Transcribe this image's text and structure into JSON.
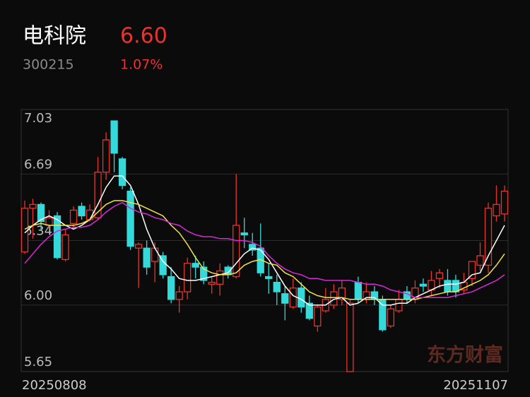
{
  "header": {
    "name": "电科院",
    "price": "6.60",
    "code": "300215",
    "change": "1.07%"
  },
  "watermark": "东方财富",
  "chart_data": {
    "type": "candlestick",
    "categories": [
      "20250808",
      null,
      null,
      null,
      null,
      null,
      null,
      null,
      null,
      null,
      null,
      null,
      null,
      null,
      null,
      null,
      null,
      null,
      null,
      null,
      null,
      null,
      null,
      null,
      null,
      null,
      null,
      null,
      null,
      null,
      null,
      null,
      null,
      null,
      null,
      null,
      null,
      null,
      null,
      null,
      null,
      null,
      null,
      null,
      null,
      null,
      null,
      null,
      null,
      null,
      null,
      null,
      null,
      null,
      null,
      null,
      null,
      null,
      null,
      "20251107"
    ],
    "open": [
      6.28,
      6.51,
      6.53,
      6.42,
      6.47,
      6.24,
      6.43,
      6.52,
      6.45,
      6.46,
      6.7,
      6.97,
      6.77,
      6.6,
      6.3,
      6.3,
      6.23,
      6.26,
      6.15,
      6.03,
      6.07,
      6.22,
      6.2,
      6.11,
      6.11,
      6.2,
      6.15,
      6.38,
      6.32,
      6.3,
      6.15,
      6.12,
      6.06,
      5.99,
      6.09,
      6.01,
      5.89,
      5.97,
      6.0,
      6.03,
      5.65,
      6.12,
      6.03,
      6.07,
      6.03,
      5.89,
      5.97,
      6.07,
      6.03,
      6.11,
      6.08,
      6.14,
      6.13,
      6.13,
      6.08,
      6.14,
      6.21,
      6.21,
      6.47,
      6.48
    ],
    "high": [
      6.55,
      6.56,
      6.54,
      6.5,
      6.49,
      6.4,
      6.52,
      6.54,
      6.53,
      6.78,
      6.91,
      6.97,
      6.78,
      6.62,
      6.33,
      6.34,
      6.33,
      6.28,
      6.2,
      6.1,
      6.25,
      6.26,
      6.23,
      6.15,
      6.22,
      6.21,
      6.69,
      6.46,
      6.38,
      6.43,
      6.22,
      6.16,
      6.1,
      6.14,
      6.12,
      6.05,
      6.0,
      6.09,
      6.11,
      6.13,
      6.03,
      6.15,
      6.12,
      6.1,
      6.05,
      6.0,
      6.08,
      6.1,
      6.13,
      6.14,
      6.18,
      6.19,
      6.19,
      6.16,
      6.17,
      6.23,
      6.33,
      6.54,
      6.63,
      6.63
    ],
    "low": [
      6.27,
      6.35,
      6.4,
      6.4,
      6.24,
      6.23,
      6.4,
      6.45,
      6.44,
      6.45,
      6.66,
      6.7,
      6.61,
      6.29,
      6.09,
      6.16,
      6.12,
      6.14,
      6.01,
      5.96,
      6.03,
      6.14,
      6.11,
      6.06,
      6.05,
      6.14,
      6.14,
      6.3,
      6.26,
      6.15,
      6.06,
      6.0,
      5.92,
      5.98,
      5.96,
      5.92,
      5.86,
      5.96,
      5.98,
      6.0,
      5.65,
      6.01,
      6.01,
      6.0,
      5.86,
      5.88,
      5.96,
      6.01,
      6.01,
      6.07,
      6.05,
      6.09,
      6.05,
      6.04,
      6.06,
      6.1,
      6.18,
      6.17,
      6.44,
      6.44
    ],
    "close": [
      6.51,
      6.53,
      6.44,
      6.46,
      6.25,
      6.37,
      6.5,
      6.47,
      6.5,
      6.7,
      6.87,
      6.8,
      6.63,
      6.31,
      6.32,
      6.2,
      6.3,
      6.16,
      6.03,
      6.07,
      6.22,
      6.2,
      6.13,
      6.12,
      6.18,
      6.16,
      6.42,
      6.37,
      6.29,
      6.17,
      6.14,
      6.07,
      6.01,
      6.09,
      5.99,
      5.93,
      5.99,
      6.03,
      6.07,
      6.09,
      6.01,
      6.03,
      6.07,
      6.03,
      5.87,
      5.98,
      6.03,
      6.03,
      6.09,
      6.1,
      6.13,
      6.17,
      6.07,
      6.07,
      6.12,
      6.23,
      6.26,
      6.51,
      6.53,
      6.6
    ],
    "up_color": "#e8342c",
    "down_color": "#35d9d9",
    "lines": [
      {
        "color": "#ffffff",
        "values": [
          6.38,
          6.42,
          6.45,
          6.47,
          6.45,
          6.42,
          6.4,
          6.42,
          6.45,
          6.53,
          6.62,
          6.68,
          6.68,
          6.63,
          6.53,
          6.4,
          6.3,
          6.23,
          6.19,
          6.14,
          6.13,
          6.13,
          6.14,
          6.15,
          6.16,
          6.17,
          6.22,
          6.27,
          6.3,
          6.29,
          6.24,
          6.17,
          6.1,
          6.05,
          6.03,
          6.0,
          6.0,
          6.0,
          6.03,
          6.04,
          6.0,
          6.01,
          6.04,
          6.04,
          6.0,
          6.0,
          6.01,
          6.01,
          6.04,
          6.06,
          6.08,
          6.1,
          6.11,
          6.11,
          6.12,
          6.16,
          6.17,
          6.26,
          6.34,
          6.42
        ]
      },
      {
        "color": "#f2e14c",
        "values": [
          6.4,
          6.42,
          6.43,
          6.42,
          6.42,
          6.42,
          6.42,
          6.43,
          6.45,
          6.49,
          6.53,
          6.55,
          6.55,
          6.54,
          6.53,
          6.51,
          6.49,
          6.47,
          6.42,
          6.38,
          6.32,
          6.25,
          6.19,
          6.17,
          6.16,
          6.16,
          6.17,
          6.21,
          6.23,
          6.24,
          6.22,
          6.21,
          6.17,
          6.15,
          6.11,
          6.07,
          6.05,
          6.04,
          6.04,
          6.04,
          6.03,
          6.03,
          6.03,
          6.03,
          6.03,
          6.03,
          6.03,
          6.03,
          6.03,
          6.04,
          6.05,
          6.06,
          6.07,
          6.07,
          6.09,
          6.11,
          6.13,
          6.16,
          6.21,
          6.27
        ]
      },
      {
        "color": "#d62bd6",
        "values": [
          6.22,
          6.27,
          6.32,
          6.36,
          6.39,
          6.4,
          6.41,
          6.41,
          6.42,
          6.45,
          6.49,
          6.52,
          6.54,
          6.51,
          6.49,
          6.48,
          6.46,
          6.45,
          6.43,
          6.42,
          6.39,
          6.37,
          6.36,
          6.36,
          6.35,
          6.35,
          6.34,
          6.34,
          6.33,
          6.31,
          6.26,
          6.22,
          6.19,
          6.17,
          6.16,
          6.14,
          6.14,
          6.13,
          6.13,
          6.13,
          6.13,
          6.12,
          6.11,
          6.11,
          6.1,
          6.08,
          6.07,
          6.06,
          6.04,
          6.04,
          6.04,
          6.04,
          6.04,
          6.05,
          6.06,
          6.07,
          6.09,
          6.11,
          6.13,
          6.16
        ]
      }
    ],
    "ylim": [
      5.65,
      7.03
    ],
    "yticks": [
      7.03,
      6.69,
      6.34,
      {
        "value": 6,
        "label": "6.00"
      },
      5.65
    ],
    "grid": true
  }
}
